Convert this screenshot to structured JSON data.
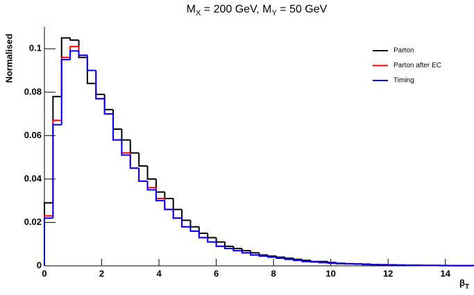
{
  "chart_data": {
    "type": "histogram",
    "title_parts": [
      "M",
      "X",
      " = 200 GeV, M",
      "Y",
      " = 50 GeV"
    ],
    "y_label": "Normalised",
    "x_label_parts": [
      "β",
      "T"
    ],
    "bins": [
      0,
      0.3,
      0.6,
      0.9,
      1.2,
      1.5,
      1.8,
      2.1,
      2.4,
      2.7,
      3,
      3.3,
      3.6,
      3.9,
      4.2,
      4.5,
      4.8,
      5.1,
      5.4,
      5.7,
      6,
      6.3,
      6.6,
      6.9,
      7.2,
      7.5,
      7.8,
      8.1,
      8.4,
      8.7,
      9,
      9.3,
      9.6,
      9.9,
      10.2,
      10.5,
      10.8,
      11.1,
      11.4,
      11.7,
      12,
      12.3,
      12.6,
      12.9,
      13.2,
      13.5,
      13.8,
      14.1,
      14.4,
      14.7,
      15
    ],
    "series": [
      {
        "name": "Parton",
        "color": "#000000",
        "values": [
          0.029,
          0.078,
          0.105,
          0.104,
          0.096,
          0.084,
          0.079,
          0.072,
          0.063,
          0.058,
          0.052,
          0.046,
          0.04,
          0.034,
          0.031,
          0.026,
          0.021,
          0.018,
          0.015,
          0.013,
          0.011,
          0.009,
          0.008,
          0.007,
          0.006,
          0.005,
          0.0045,
          0.004,
          0.0035,
          0.003,
          0.0025,
          0.002,
          0.002,
          0.0015,
          0.0012,
          0.001,
          0.0009,
          0.0008,
          0.0006,
          0.0005,
          0.0005,
          0.0004,
          0.0003,
          0.0003,
          0.0002,
          0.0002,
          0.0002,
          0.0001,
          0.0001,
          0.0001
        ]
      },
      {
        "name": "Parton after EC",
        "color": "#ff0000",
        "values": [
          0.023,
          0.067,
          0.096,
          0.101,
          0.097,
          0.09,
          0.077,
          0.07,
          0.058,
          0.052,
          0.045,
          0.039,
          0.036,
          0.031,
          0.026,
          0.022,
          0.018,
          0.016,
          0.013,
          0.011,
          0.009,
          0.008,
          0.007,
          0.006,
          0.005,
          0.0045,
          0.004,
          0.0035,
          0.003,
          0.0025,
          0.002,
          0.0018,
          0.0015,
          0.0012,
          0.001,
          0.0009,
          0.0008,
          0.0006,
          0.0005,
          0.0005,
          0.0004,
          0.0003,
          0.0003,
          0.0002,
          0.0002,
          0.0002,
          0.0001,
          0.0001,
          0.0001,
          0.0001
        ]
      },
      {
        "name": "Timing",
        "color": "#0000ff",
        "values": [
          0.022,
          0.065,
          0.095,
          0.099,
          0.097,
          0.09,
          0.077,
          0.07,
          0.058,
          0.051,
          0.045,
          0.039,
          0.035,
          0.03,
          0.026,
          0.022,
          0.018,
          0.016,
          0.013,
          0.011,
          0.009,
          0.008,
          0.007,
          0.006,
          0.005,
          0.0045,
          0.004,
          0.0035,
          0.003,
          0.0025,
          0.002,
          0.0018,
          0.0015,
          0.0012,
          0.001,
          0.0009,
          0.0008,
          0.0006,
          0.0005,
          0.0005,
          0.0004,
          0.0003,
          0.0003,
          0.0002,
          0.0002,
          0.0002,
          0.0001,
          0.0001,
          0.0001,
          0.0001
        ]
      }
    ],
    "xlim": [
      0,
      15
    ],
    "xticks": [
      0,
      2,
      4,
      6,
      8,
      10,
      12,
      14
    ],
    "ylim": [
      0,
      0.11
    ],
    "yticks": [
      0,
      0.02,
      0.04,
      0.06,
      0.08,
      0.1
    ],
    "legend": "top-right"
  }
}
